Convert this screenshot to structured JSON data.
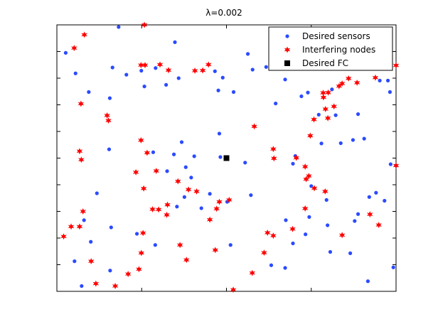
{
  "chart_data": {
    "type": "scatter",
    "title": "λ=0.002",
    "xlabel": "",
    "ylabel": "",
    "xlim": [
      0,
      1000
    ],
    "ylim": [
      0,
      1000
    ],
    "grid": false,
    "legend_position": "top-right",
    "colors": {
      "sensors": "#2b4bff",
      "interferers": "#ff0000",
      "fc": "#000000"
    },
    "series": [
      {
        "name": "Desired sensors",
        "marker": "dot",
        "points": [
          [
            182,
            992
          ],
          [
            348,
            935
          ],
          [
            26,
            895
          ],
          [
            164,
            840
          ],
          [
            55,
            818
          ],
          [
            205,
            813
          ],
          [
            94,
            748
          ],
          [
            156,
            725
          ],
          [
            249,
            828
          ],
          [
            258,
            769
          ],
          [
            291,
            838
          ],
          [
            322,
            775
          ],
          [
            359,
            800
          ],
          [
            489,
            802
          ],
          [
            466,
            826
          ],
          [
            476,
            754
          ],
          [
            521,
            748
          ],
          [
            563,
            891
          ],
          [
            577,
            832
          ],
          [
            617,
            842
          ],
          [
            645,
            705
          ],
          [
            673,
            795
          ],
          [
            740,
            746
          ],
          [
            721,
            732
          ],
          [
            811,
            758
          ],
          [
            888,
            665
          ],
          [
            952,
            791
          ],
          [
            976,
            791
          ],
          [
            982,
            748
          ],
          [
            772,
            663
          ],
          [
            822,
            661
          ],
          [
            873,
            568
          ],
          [
            780,
            555
          ],
          [
            837,
            556
          ],
          [
            906,
            573
          ],
          [
            555,
            483
          ],
          [
            479,
            592
          ],
          [
            345,
            514
          ],
          [
            284,
            522
          ],
          [
            368,
            560
          ],
          [
            405,
            507
          ],
          [
            325,
            451
          ],
          [
            154,
            533
          ],
          [
            118,
            368
          ],
          [
            80,
            267
          ],
          [
            160,
            240
          ],
          [
            380,
            466
          ],
          [
            396,
            427
          ],
          [
            376,
            354
          ],
          [
            354,
            318
          ],
          [
            426,
            312
          ],
          [
            451,
            366
          ],
          [
            502,
            336
          ],
          [
            572,
            361
          ],
          [
            696,
            479
          ],
          [
            703,
            508
          ],
          [
            750,
            395
          ],
          [
            795,
            343
          ],
          [
            744,
            279
          ],
          [
            675,
            267
          ],
          [
            733,
            214
          ],
          [
            696,
            180
          ],
          [
            632,
            98
          ],
          [
            673,
            88
          ],
          [
            806,
            148
          ],
          [
            865,
            143
          ],
          [
            921,
            354
          ],
          [
            878,
            264
          ],
          [
            798,
            248
          ],
          [
            888,
            290
          ],
          [
            966,
            340
          ],
          [
            984,
            477
          ],
          [
            1000,
            472
          ],
          [
            941,
            370
          ],
          [
            992,
            90
          ],
          [
            917,
            38
          ],
          [
            512,
            174
          ],
          [
            290,
            174
          ],
          [
            236,
            216
          ],
          [
            100,
            186
          ],
          [
            52,
            113
          ],
          [
            73,
            20
          ],
          [
            157,
            78
          ],
          [
            482,
            504
          ]
        ]
      },
      {
        "name": "Interfering nodes",
        "marker": "star",
        "points": [
          [
            258,
            1000
          ],
          [
            81,
            963
          ],
          [
            51,
            913
          ],
          [
            248,
            849
          ],
          [
            260,
            849
          ],
          [
            304,
            851
          ],
          [
            329,
            830
          ],
          [
            407,
            828
          ],
          [
            447,
            851
          ],
          [
            430,
            829
          ],
          [
            71,
            704
          ],
          [
            148,
            660
          ],
          [
            152,
            641
          ],
          [
            67,
            526
          ],
          [
            72,
            494
          ],
          [
            248,
            567
          ],
          [
            266,
            520
          ],
          [
            233,
            447
          ],
          [
            293,
            452
          ],
          [
            357,
            413
          ],
          [
            388,
            382
          ],
          [
            412,
            375
          ],
          [
            256,
            386
          ],
          [
            282,
            308
          ],
          [
            300,
            307
          ],
          [
            324,
            287
          ],
          [
            326,
            325
          ],
          [
            451,
            269
          ],
          [
            479,
            336
          ],
          [
            471,
            310
          ],
          [
            508,
            343
          ],
          [
            582,
            619
          ],
          [
            638,
            534
          ],
          [
            640,
            499
          ],
          [
            706,
            501
          ],
          [
            732,
            468
          ],
          [
            743,
            433
          ],
          [
            735,
            421
          ],
          [
            759,
            387
          ],
          [
            791,
            375
          ],
          [
            732,
            311
          ],
          [
            695,
            234
          ],
          [
            621,
            220
          ],
          [
            638,
            209
          ],
          [
            611,
            145
          ],
          [
            576,
            69
          ],
          [
            520,
            6
          ],
          [
            467,
            155
          ],
          [
            382,
            118
          ],
          [
            363,
            174
          ],
          [
            254,
            219
          ],
          [
            249,
            144
          ],
          [
            242,
            83
          ],
          [
            210,
            65
          ],
          [
            172,
            20
          ],
          [
            115,
            29
          ],
          [
            101,
            113
          ],
          [
            67,
            243
          ],
          [
            42,
            243
          ],
          [
            20,
            206
          ],
          [
            77,
            300
          ],
          [
            817,
            694
          ],
          [
            792,
            684
          ],
          [
            758,
            645
          ],
          [
            747,
            584
          ],
          [
            799,
            650
          ],
          [
            800,
            746
          ],
          [
            785,
            745
          ],
          [
            786,
            728
          ],
          [
            832,
            770
          ],
          [
            841,
            780
          ],
          [
            860,
            799
          ],
          [
            885,
            783
          ],
          [
            939,
            802
          ],
          [
            1000,
            848
          ],
          [
            1000,
            472
          ],
          [
            841,
            211
          ],
          [
            923,
            289
          ],
          [
            949,
            249
          ]
        ]
      },
      {
        "name": "Desired FC",
        "marker": "square",
        "points": [
          [
            500,
            500
          ]
        ]
      }
    ]
  }
}
